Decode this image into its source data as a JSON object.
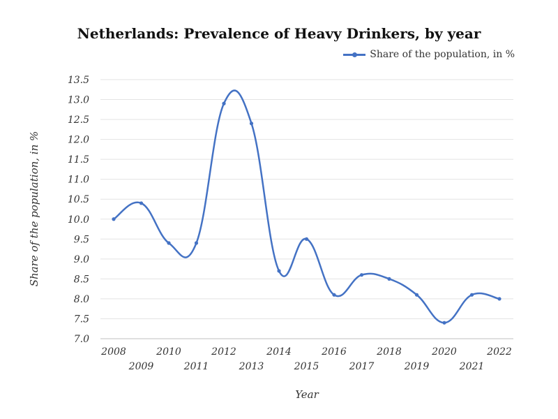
{
  "chart_data": {
    "type": "line",
    "title": "Netherlands: Prevalence of Heavy Drinkers, by year",
    "xlabel": "Year",
    "ylabel": "Share of the population, in %",
    "x": [
      "2008",
      "2009",
      "2010",
      "2011",
      "2012",
      "2013",
      "2014",
      "2015",
      "2016",
      "2017",
      "2018",
      "2019",
      "2020",
      "2021",
      "2022"
    ],
    "series": [
      {
        "name": "Share of the population, in %",
        "values": [
          10.0,
          10.4,
          9.4,
          9.4,
          12.9,
          12.4,
          8.7,
          9.5,
          8.1,
          8.6,
          8.5,
          8.1,
          7.4,
          8.1,
          8.0
        ]
      }
    ],
    "ylim": [
      7.0,
      13.5
    ],
    "yticks": [
      "7.0",
      "7.5",
      "8.0",
      "8.5",
      "9.0",
      "9.5",
      "10.0",
      "10.5",
      "11.0",
      "11.5",
      "12.0",
      "12.5",
      "13.0",
      "13.5"
    ],
    "grid": true,
    "legend": "top-right",
    "color": "#4472c4"
  }
}
